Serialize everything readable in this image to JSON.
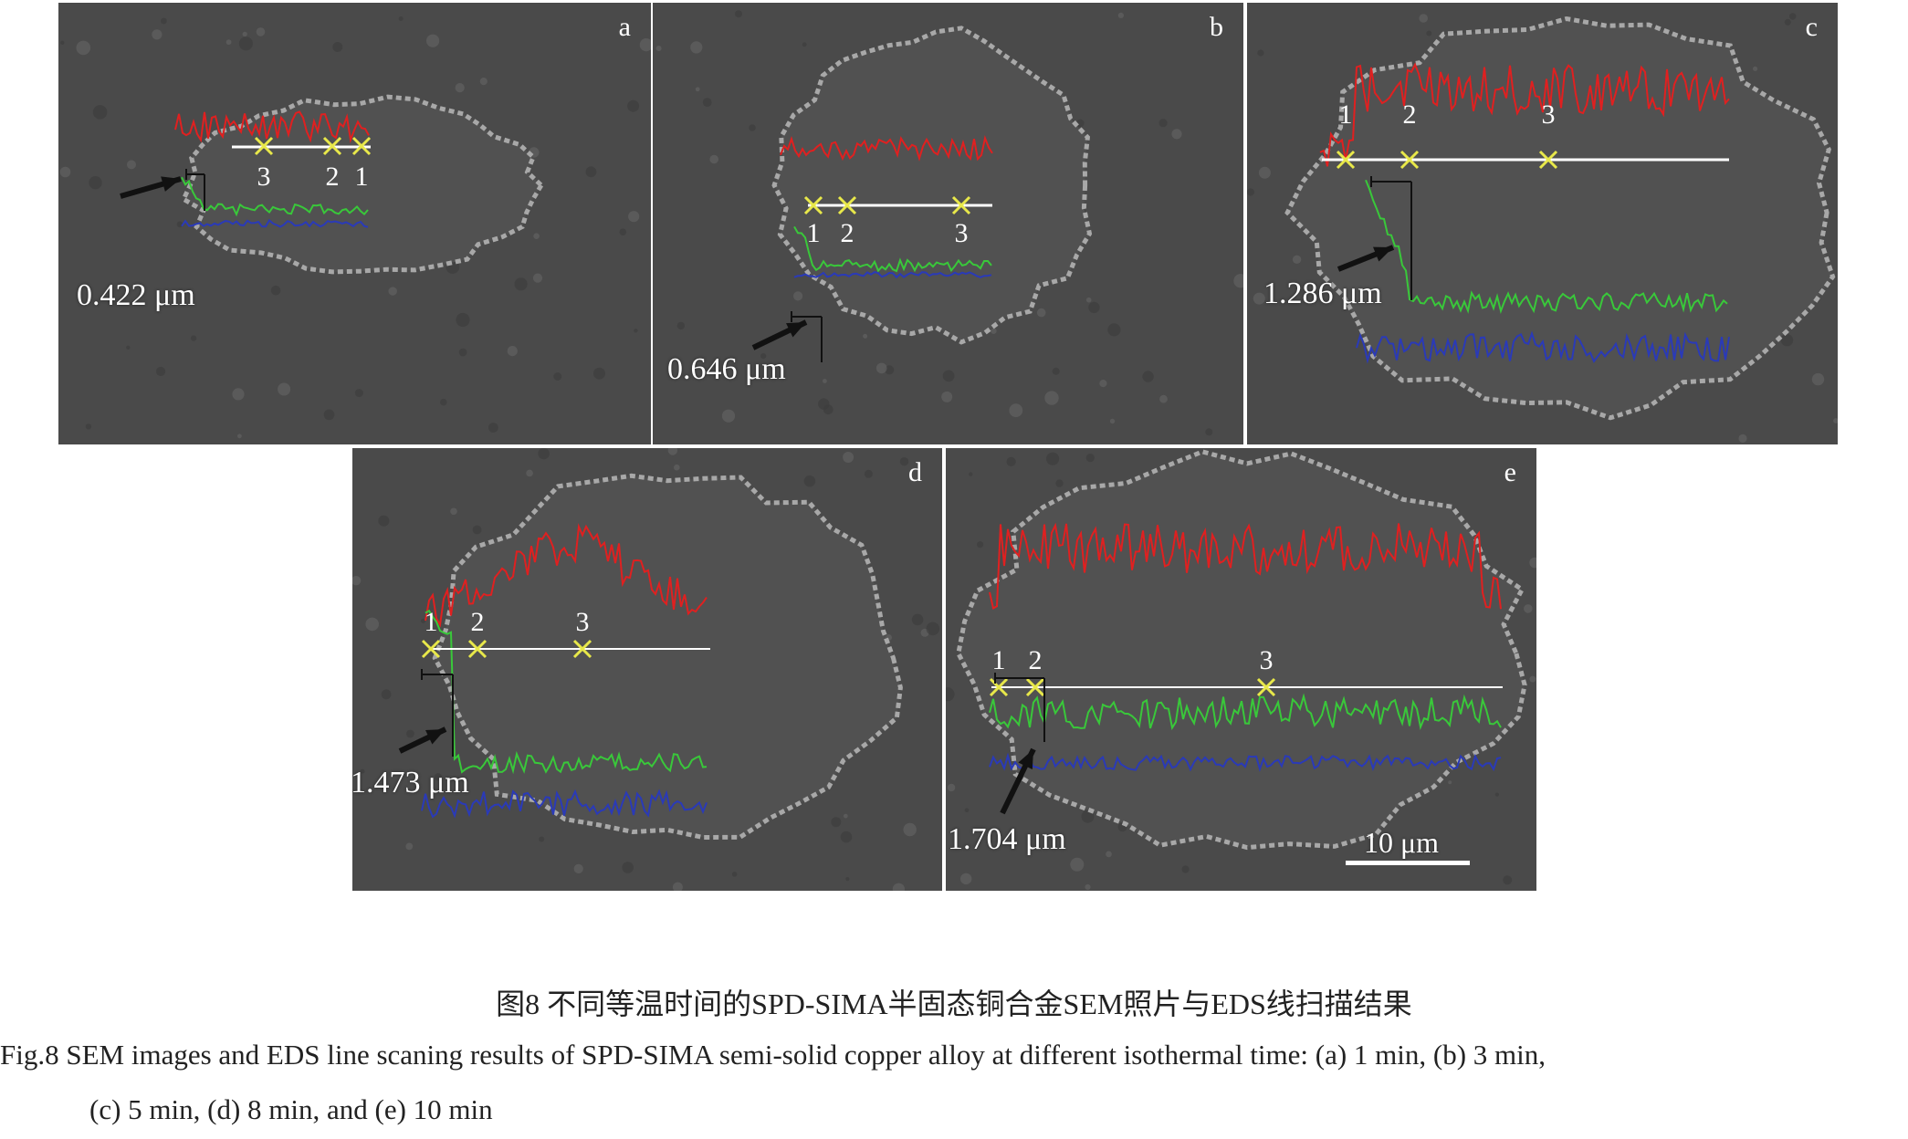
{
  "panels": [
    {
      "label": "a",
      "measurement": "0.422 μm",
      "points": [
        "3",
        "2",
        "1"
      ]
    },
    {
      "label": "b",
      "measurement": "0.646 μm",
      "points": [
        "1",
        "2",
        "3"
      ]
    },
    {
      "label": "c",
      "measurement": "1.286 μm",
      "points": [
        "1",
        "2",
        "3"
      ]
    },
    {
      "label": "d",
      "measurement": "1.473 μm",
      "points": [
        "1",
        "2",
        "3"
      ]
    },
    {
      "label": "e",
      "measurement": "1.704 μm",
      "points": [
        "1",
        "2",
        "3"
      ],
      "scale_bar": "10 μm"
    }
  ],
  "colors": {
    "red_trace": "#e02020",
    "green_trace": "#39c83a",
    "blue_trace": "#2a3ab8",
    "marker": "#e8e84a"
  },
  "caption": {
    "cn": "图8  不同等温时间的SPD-SIMA半固态铜合金SEM照片与EDS线扫描结果",
    "en_line1": "Fig.8  SEM images and EDS line scaning results of SPD-SIMA semi-solid copper alloy at different isothermal time: (a) 1 min, (b) 3 min,",
    "en_line2": "(c) 5 min, (d) 8 min, and (e) 10 min"
  }
}
